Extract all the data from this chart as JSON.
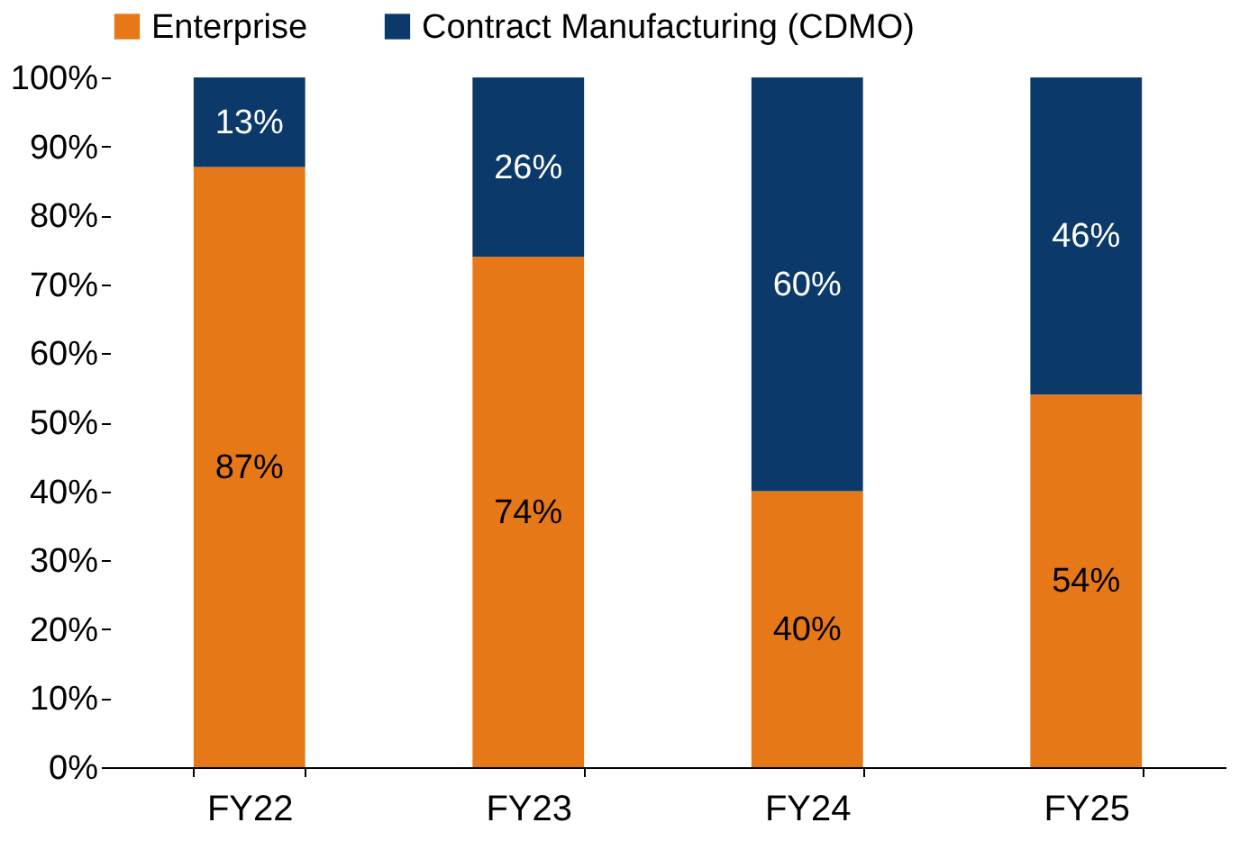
{
  "chart_data": {
    "type": "bar",
    "stacked": true,
    "categories": [
      "FY22",
      "FY23",
      "FY24",
      "FY25"
    ],
    "series": [
      {
        "name": "Enterprise",
        "color": "#e67817",
        "values": [
          87,
          74,
          40,
          54
        ],
        "value_labels": [
          "87%",
          "74%",
          "40%",
          "54%"
        ]
      },
      {
        "name": "Contract Manufacturing (CDMO)",
        "color": "#0b3a6a",
        "values": [
          13,
          26,
          60,
          46
        ],
        "value_labels": [
          "13%",
          "26%",
          "60%",
          "46%"
        ]
      }
    ],
    "ylim": [
      0,
      100
    ],
    "yticks": [
      {
        "value": 0,
        "label": "0%"
      },
      {
        "value": 10,
        "label": "10%"
      },
      {
        "value": 20,
        "label": "20%"
      },
      {
        "value": 30,
        "label": "30%"
      },
      {
        "value": 40,
        "label": "40%"
      },
      {
        "value": 50,
        "label": "50%"
      },
      {
        "value": 60,
        "label": "60%"
      },
      {
        "value": 70,
        "label": "70%"
      },
      {
        "value": 80,
        "label": "80%"
      },
      {
        "value": 90,
        "label": "90%"
      },
      {
        "value": 100,
        "label": "100%"
      }
    ],
    "legend": "top",
    "grid": false
  }
}
